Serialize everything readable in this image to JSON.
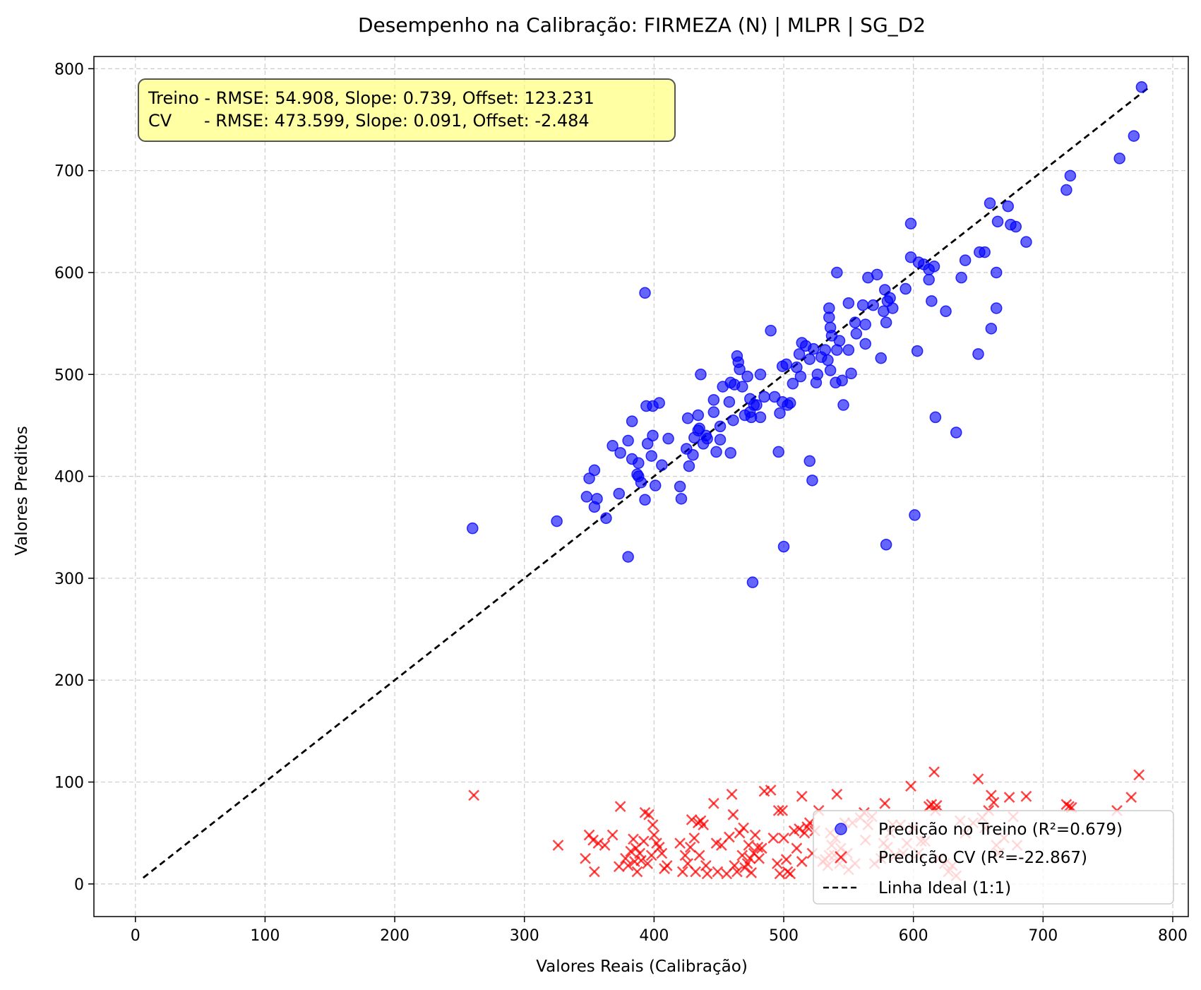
{
  "chart_data": {
    "type": "scatter",
    "title": "Desempenho na Calibração: FIRMEZA (N) | MLPR | SG_D2",
    "xlabel": "Valores Reais (Calibração)",
    "ylabel": "Valores Preditos",
    "xlim": [
      -32,
      812
    ],
    "ylim": [
      -32,
      812
    ],
    "xticks": [
      0,
      100,
      200,
      300,
      400,
      500,
      600,
      700,
      800
    ],
    "yticks": [
      0,
      100,
      200,
      300,
      400,
      500,
      600,
      700,
      800
    ],
    "grid": true,
    "legend_position": "bottom-right",
    "stats_box": {
      "line1": "Treino - RMSE: 54.908, Slope: 0.739, Offset: 123.231",
      "line2": "CV      - RMSE: 473.599, Slope: 0.091, Offset: -2.484",
      "color": "#ffff66"
    },
    "series": [
      {
        "name": "Predição no Treino (R²=0.679)",
        "marker": "circle",
        "color": "#0000ff",
        "points": [
          [
            260,
            349
          ],
          [
            325,
            356
          ],
          [
            348,
            380
          ],
          [
            350,
            398
          ],
          [
            354,
            406
          ],
          [
            354,
            370
          ],
          [
            356,
            378
          ],
          [
            363,
            359
          ],
          [
            368,
            430
          ],
          [
            373,
            383
          ],
          [
            374,
            423
          ],
          [
            380,
            435
          ],
          [
            380,
            321
          ],
          [
            383,
            454
          ],
          [
            383,
            417
          ],
          [
            387,
            402
          ],
          [
            388,
            413
          ],
          [
            388,
            400
          ],
          [
            390,
            394
          ],
          [
            393,
            580
          ],
          [
            393,
            377
          ],
          [
            394,
            469
          ],
          [
            395,
            432
          ],
          [
            398,
            420
          ],
          [
            399,
            469
          ],
          [
            399,
            440
          ],
          [
            401,
            391
          ],
          [
            404,
            472
          ],
          [
            406,
            411
          ],
          [
            411,
            437
          ],
          [
            420,
            390
          ],
          [
            421,
            378
          ],
          [
            425,
            427
          ],
          [
            426,
            457
          ],
          [
            427,
            410
          ],
          [
            430,
            421
          ],
          [
            431,
            438
          ],
          [
            434,
            460
          ],
          [
            434,
            445
          ],
          [
            435,
            447
          ],
          [
            436,
            500
          ],
          [
            438,
            432
          ],
          [
            440,
            440
          ],
          [
            441,
            437
          ],
          [
            446,
            475
          ],
          [
            446,
            463
          ],
          [
            448,
            424
          ],
          [
            451,
            449
          ],
          [
            451,
            436
          ],
          [
            453,
            488
          ],
          [
            458,
            473
          ],
          [
            459,
            492
          ],
          [
            459,
            423
          ],
          [
            461,
            455
          ],
          [
            462,
            490
          ],
          [
            464,
            518
          ],
          [
            465,
            512
          ],
          [
            466,
            505
          ],
          [
            468,
            488
          ],
          [
            470,
            460
          ],
          [
            472,
            498
          ],
          [
            474,
            476
          ],
          [
            474,
            463
          ],
          [
            475,
            458
          ],
          [
            476,
            296
          ],
          [
            477,
            470
          ],
          [
            479,
            470
          ],
          [
            482,
            500
          ],
          [
            482,
            458
          ],
          [
            485,
            478
          ],
          [
            490,
            543
          ],
          [
            493,
            478
          ],
          [
            496,
            424
          ],
          [
            497,
            462
          ],
          [
            499,
            473
          ],
          [
            499,
            508
          ],
          [
            500,
            331
          ],
          [
            502,
            510
          ],
          [
            503,
            470
          ],
          [
            505,
            472
          ],
          [
            507,
            491
          ],
          [
            510,
            507
          ],
          [
            512,
            520
          ],
          [
            513,
            498
          ],
          [
            514,
            531
          ],
          [
            517,
            528
          ],
          [
            520,
            515
          ],
          [
            520,
            415
          ],
          [
            522,
            396
          ],
          [
            523,
            525
          ],
          [
            525,
            492
          ],
          [
            526,
            500
          ],
          [
            529,
            517
          ],
          [
            532,
            524
          ],
          [
            534,
            514
          ],
          [
            535,
            565
          ],
          [
            535,
            556
          ],
          [
            536,
            546
          ],
          [
            536,
            504
          ],
          [
            537,
            538
          ],
          [
            540,
            492
          ],
          [
            541,
            524
          ],
          [
            541,
            600
          ],
          [
            543,
            533
          ],
          [
            545,
            494
          ],
          [
            546,
            470
          ],
          [
            550,
            524
          ],
          [
            550,
            570
          ],
          [
            552,
            501
          ],
          [
            555,
            551
          ],
          [
            556,
            540
          ],
          [
            561,
            568
          ],
          [
            563,
            530
          ],
          [
            563,
            549
          ],
          [
            565,
            595
          ],
          [
            569,
            568
          ],
          [
            572,
            598
          ],
          [
            575,
            516
          ],
          [
            577,
            562
          ],
          [
            578,
            583
          ],
          [
            579,
            551
          ],
          [
            579,
            333
          ],
          [
            580,
            572
          ],
          [
            582,
            575
          ],
          [
            584,
            565
          ],
          [
            594,
            584
          ],
          [
            598,
            615
          ],
          [
            598,
            648
          ],
          [
            601,
            362
          ],
          [
            603,
            523
          ],
          [
            604,
            610
          ],
          [
            608,
            608
          ],
          [
            612,
            603
          ],
          [
            612,
            593
          ],
          [
            614,
            572
          ],
          [
            616,
            606
          ],
          [
            617,
            458
          ],
          [
            625,
            562
          ],
          [
            633,
            443
          ],
          [
            637,
            595
          ],
          [
            640,
            612
          ],
          [
            650,
            520
          ],
          [
            651,
            620
          ],
          [
            655,
            620
          ],
          [
            659,
            668
          ],
          [
            660,
            545
          ],
          [
            664,
            565
          ],
          [
            664,
            600
          ],
          [
            665,
            650
          ],
          [
            673,
            665
          ],
          [
            675,
            647
          ],
          [
            679,
            645
          ],
          [
            687,
            630
          ],
          [
            718,
            681
          ],
          [
            721,
            695
          ],
          [
            759,
            712
          ],
          [
            770,
            734
          ],
          [
            776,
            782
          ]
        ]
      },
      {
        "name": "Predição CV (R²=-22.867)",
        "marker": "x",
        "color": "#ff0000",
        "points": [
          [
            261,
            87
          ],
          [
            326,
            38
          ],
          [
            347,
            25
          ],
          [
            350,
            48
          ],
          [
            353,
            43
          ],
          [
            354,
            12
          ],
          [
            357,
            40
          ],
          [
            362,
            38
          ],
          [
            368,
            48
          ],
          [
            373,
            17
          ],
          [
            374,
            76
          ],
          [
            378,
            25
          ],
          [
            380,
            18
          ],
          [
            382,
            32
          ],
          [
            384,
            44
          ],
          [
            385,
            22
          ],
          [
            386,
            35
          ],
          [
            387,
            12
          ],
          [
            389,
            30
          ],
          [
            390,
            23
          ],
          [
            392,
            42
          ],
          [
            393,
            70
          ],
          [
            395,
            20
          ],
          [
            396,
            68
          ],
          [
            398,
            28
          ],
          [
            399,
            58
          ],
          [
            400,
            48
          ],
          [
            402,
            40
          ],
          [
            404,
            36
          ],
          [
            406,
            30
          ],
          [
            408,
            15
          ],
          [
            410,
            18
          ],
          [
            420,
            40
          ],
          [
            422,
            12
          ],
          [
            424,
            28
          ],
          [
            426,
            20
          ],
          [
            428,
            36
          ],
          [
            429,
            63
          ],
          [
            431,
            45
          ],
          [
            432,
            12
          ],
          [
            434,
            60
          ],
          [
            435,
            28
          ],
          [
            436,
            62
          ],
          [
            438,
            58
          ],
          [
            440,
            18
          ],
          [
            441,
            10
          ],
          [
            446,
            79
          ],
          [
            448,
            40
          ],
          [
            449,
            12
          ],
          [
            452,
            38
          ],
          [
            456,
            10
          ],
          [
            458,
            46
          ],
          [
            460,
            88
          ],
          [
            461,
            68
          ],
          [
            462,
            18
          ],
          [
            464,
            12
          ],
          [
            466,
            50
          ],
          [
            468,
            28
          ],
          [
            469,
            55
          ],
          [
            470,
            16
          ],
          [
            472,
            20
          ],
          [
            473,
            38
          ],
          [
            474,
            25
          ],
          [
            475,
            11
          ],
          [
            477,
            30
          ],
          [
            478,
            48
          ],
          [
            480,
            36
          ],
          [
            481,
            25
          ],
          [
            483,
            35
          ],
          [
            485,
            91
          ],
          [
            490,
            92
          ],
          [
            492,
            45
          ],
          [
            495,
            20
          ],
          [
            496,
            72
          ],
          [
            497,
            10
          ],
          [
            499,
            72
          ],
          [
            500,
            45
          ],
          [
            502,
            24
          ],
          [
            503,
            12
          ],
          [
            505,
            10
          ],
          [
            508,
            52
          ],
          [
            510,
            35
          ],
          [
            512,
            54
          ],
          [
            514,
            22
          ],
          [
            514,
            86
          ],
          [
            516,
            50
          ],
          [
            518,
            56
          ],
          [
            520,
            60
          ],
          [
            522,
            30
          ],
          [
            524,
            52
          ],
          [
            527,
            72
          ],
          [
            530,
            22
          ],
          [
            532,
            24
          ],
          [
            534,
            18
          ],
          [
            535,
            28
          ],
          [
            536,
            50
          ],
          [
            537,
            38
          ],
          [
            539,
            28
          ],
          [
            540,
            45
          ],
          [
            541,
            88
          ],
          [
            543,
            20
          ],
          [
            544,
            35
          ],
          [
            547,
            60
          ],
          [
            549,
            30
          ],
          [
            550,
            14
          ],
          [
            553,
            60
          ],
          [
            555,
            20
          ],
          [
            559,
            65
          ],
          [
            562,
            70
          ],
          [
            563,
            43
          ],
          [
            565,
            58
          ],
          [
            568,
            66
          ],
          [
            570,
            20
          ],
          [
            575,
            25
          ],
          [
            577,
            40
          ],
          [
            578,
            79
          ],
          [
            580,
            36
          ],
          [
            582,
            50
          ],
          [
            584,
            58
          ],
          [
            586,
            28
          ],
          [
            590,
            58
          ],
          [
            592,
            30
          ],
          [
            595,
            40
          ],
          [
            598,
            96
          ],
          [
            600,
            55
          ],
          [
            604,
            30
          ],
          [
            606,
            42
          ],
          [
            609,
            42
          ],
          [
            612,
            76
          ],
          [
            614,
            78
          ],
          [
            616,
            110
          ],
          [
            617,
            72
          ],
          [
            618,
            77
          ],
          [
            620,
            25
          ],
          [
            624,
            20
          ],
          [
            627,
            12
          ],
          [
            630,
            18
          ],
          [
            633,
            8
          ],
          [
            636,
            62
          ],
          [
            640,
            50
          ],
          [
            646,
            60
          ],
          [
            650,
            103
          ],
          [
            653,
            65
          ],
          [
            655,
            55
          ],
          [
            658,
            72
          ],
          [
            660,
            87
          ],
          [
            662,
            80
          ],
          [
            664,
            38
          ],
          [
            666,
            30
          ],
          [
            670,
            45
          ],
          [
            674,
            85
          ],
          [
            677,
            66
          ],
          [
            680,
            38
          ],
          [
            687,
            86
          ],
          [
            718,
            78
          ],
          [
            720,
            76
          ],
          [
            722,
            75
          ],
          [
            757,
            72
          ],
          [
            768,
            85
          ],
          [
            774,
            107
          ]
        ]
      },
      {
        "name": "Linha Ideal (1:1)",
        "marker": "dashed-line",
        "color": "#000000",
        "points": [
          [
            6,
            6
          ],
          [
            782,
            782
          ]
        ]
      }
    ]
  }
}
